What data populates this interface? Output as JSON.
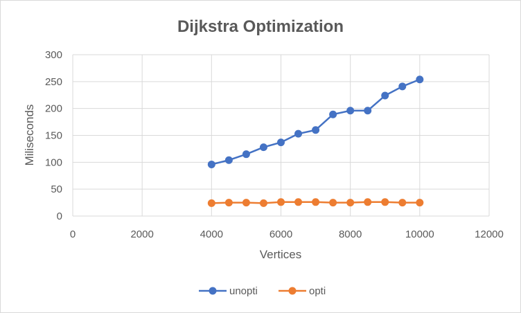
{
  "chart_data": {
    "type": "scatter",
    "title": "Dijkstra Optimization",
    "xlabel": "Vertices",
    "ylabel": "Miliseconds",
    "xlim": [
      0,
      12000
    ],
    "ylim": [
      0,
      300
    ],
    "x_ticks": [
      0,
      2000,
      4000,
      6000,
      8000,
      10000,
      12000
    ],
    "y_ticks": [
      0,
      50,
      100,
      150,
      200,
      250,
      300
    ],
    "x_tick_labels": [
      "0",
      "2000",
      "4000",
      "6000",
      "8000",
      "10000",
      "12000"
    ],
    "y_tick_labels": [
      "0",
      "50",
      "100",
      "150",
      "200",
      "250",
      "300"
    ],
    "grid": true,
    "legend_position": "bottom",
    "x": [
      4000,
      4500,
      5000,
      5500,
      6000,
      6500,
      7000,
      7500,
      8000,
      8500,
      9000,
      9500,
      10000
    ],
    "series": [
      {
        "name": "unopti",
        "color": "#4472c4",
        "values": [
          96,
          104,
          115,
          128,
          137,
          153,
          160,
          189,
          196,
          196,
          224,
          241,
          254
        ]
      },
      {
        "name": "opti",
        "color": "#ed7d31",
        "values": [
          24,
          25,
          25,
          24,
          26,
          26,
          26,
          25,
          25,
          26,
          26,
          25,
          25
        ]
      }
    ]
  }
}
